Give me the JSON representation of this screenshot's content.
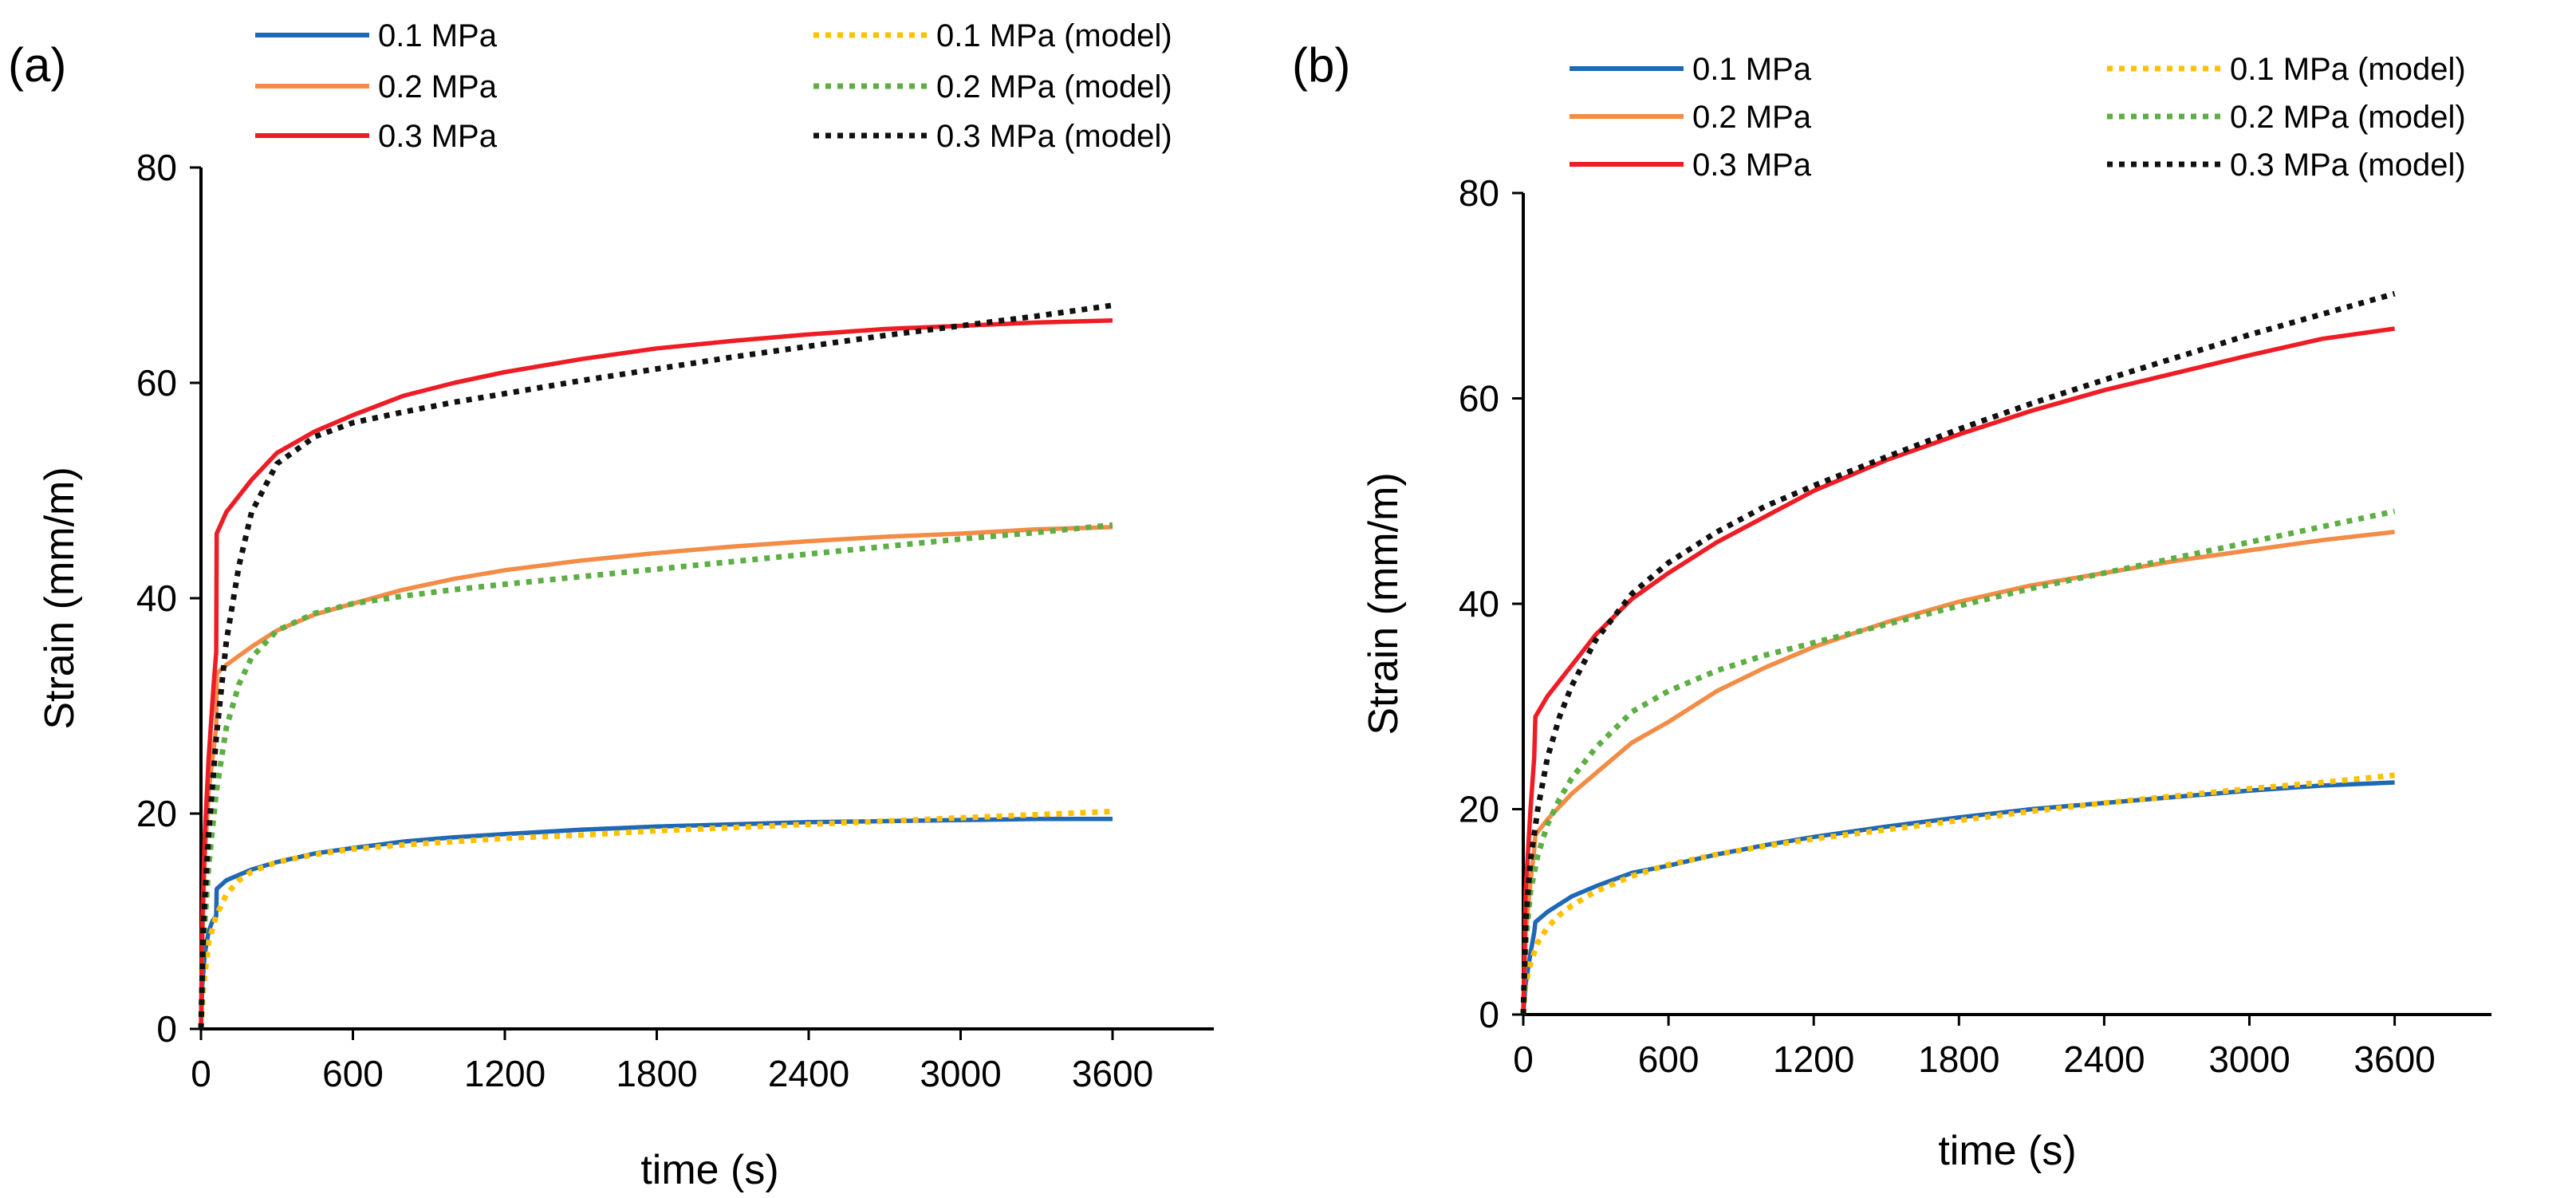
{
  "colors": {
    "exp_01": "#1F68B5",
    "exp_02": "#F28C46",
    "exp_03": "#EE1C24",
    "mod_01": "#FFC000",
    "mod_02": "#5DAE44",
    "mod_03": "#111111",
    "axis": "#000000"
  },
  "chart_data": [
    {
      "type": "line",
      "panel_label": "(a)",
      "xlabel": "time (s)",
      "ylabel": "Strain (mm/m)",
      "xlim": [
        0,
        4000
      ],
      "ylim": [
        0,
        80
      ],
      "xticks": [
        0,
        600,
        1200,
        1800,
        2400,
        3000,
        3600
      ],
      "yticks": [
        0,
        20,
        40,
        60,
        80
      ],
      "grid": false,
      "legend_position": "top",
      "series": [
        {
          "name": "0.1 MPa",
          "style": "solid",
          "color_key": "exp_01",
          "x": [
            0,
            5,
            15,
            30,
            45,
            60,
            62,
            100,
            200,
            300,
            450,
            600,
            800,
            1000,
            1200,
            1500,
            1800,
            2100,
            2400,
            2700,
            3000,
            3300,
            3600
          ],
          "y": [
            0,
            4,
            7,
            9,
            10,
            10.5,
            13,
            13.8,
            14.8,
            15.5,
            16.3,
            16.8,
            17.4,
            17.8,
            18.1,
            18.5,
            18.8,
            19.0,
            19.2,
            19.3,
            19.4,
            19.5,
            19.5
          ]
        },
        {
          "name": "0.2 MPa",
          "style": "solid",
          "color_key": "exp_02",
          "x": [
            0,
            5,
            15,
            30,
            50,
            60,
            62,
            100,
            200,
            300,
            450,
            600,
            800,
            1000,
            1200,
            1500,
            1800,
            2100,
            2400,
            2700,
            3000,
            3300,
            3600
          ],
          "y": [
            0,
            8,
            16,
            22,
            26,
            28,
            33,
            33.8,
            35.5,
            37,
            38.5,
            39.5,
            40.8,
            41.8,
            42.6,
            43.5,
            44.2,
            44.8,
            45.3,
            45.7,
            46.0,
            46.4,
            46.6
          ]
        },
        {
          "name": "0.3 MPa",
          "style": "solid",
          "color_key": "exp_03",
          "x": [
            0,
            5,
            15,
            30,
            50,
            60,
            62,
            100,
            200,
            300,
            450,
            600,
            800,
            1000,
            1200,
            1500,
            1800,
            2100,
            2400,
            2700,
            3000,
            3300,
            3600
          ],
          "y": [
            0,
            10,
            18,
            25,
            32,
            35,
            46,
            48,
            51,
            53.5,
            55.5,
            57,
            58.8,
            60,
            61,
            62.2,
            63.2,
            63.9,
            64.5,
            65,
            65.3,
            65.6,
            65.8
          ]
        },
        {
          "name": "0.1 MPa (model)",
          "style": "dotted",
          "color_key": "mod_01",
          "x": [
            0,
            10,
            30,
            60,
            100,
            150,
            200,
            300,
            450,
            600,
            800,
            1000,
            1200,
            1500,
            1800,
            2100,
            2400,
            2700,
            3000,
            3300,
            3600
          ],
          "y": [
            0,
            4,
            8,
            10.5,
            12.5,
            13.8,
            14.6,
            15.5,
            16.2,
            16.7,
            17.1,
            17.4,
            17.7,
            18.0,
            18.4,
            18.7,
            19.0,
            19.3,
            19.6,
            19.9,
            20.2
          ]
        },
        {
          "name": "0.2 MPa (model)",
          "style": "dotted",
          "color_key": "mod_02",
          "x": [
            0,
            10,
            30,
            60,
            100,
            150,
            200,
            300,
            450,
            600,
            800,
            1000,
            1200,
            1500,
            1800,
            2100,
            2400,
            2700,
            3000,
            3300,
            3600
          ],
          "y": [
            0,
            8,
            15,
            22,
            28,
            32,
            34.5,
            37,
            38.6,
            39.5,
            40.2,
            40.8,
            41.3,
            42.0,
            42.7,
            43.4,
            44.1,
            44.8,
            45.5,
            46.1,
            46.8
          ]
        },
        {
          "name": "0.3 MPa (model)",
          "style": "dotted",
          "color_key": "mod_03",
          "x": [
            0,
            10,
            30,
            60,
            100,
            150,
            200,
            300,
            450,
            600,
            800,
            1000,
            1200,
            1500,
            1800,
            2100,
            2400,
            2700,
            3000,
            3300,
            3600
          ],
          "y": [
            0,
            10,
            18,
            27,
            36,
            43,
            48,
            52.5,
            55,
            56.3,
            57.3,
            58.2,
            59,
            60.2,
            61.3,
            62.4,
            63.4,
            64.4,
            65.3,
            66.2,
            67.2
          ]
        }
      ]
    },
    {
      "type": "line",
      "panel_label": "(b)",
      "xlabel": "time (s)",
      "ylabel": "Strain (mm/m)",
      "xlim": [
        0,
        4000
      ],
      "ylim": [
        0,
        80
      ],
      "xticks": [
        0,
        600,
        1200,
        1800,
        2400,
        3000,
        3600
      ],
      "yticks": [
        0,
        20,
        40,
        60,
        80
      ],
      "grid": false,
      "legend_position": "top",
      "series": [
        {
          "name": "0.1 MPa",
          "style": "solid",
          "color_key": "exp_01",
          "x": [
            0,
            10,
            30,
            45,
            50,
            100,
            200,
            300,
            450,
            600,
            800,
            1000,
            1200,
            1500,
            1800,
            2100,
            2400,
            2700,
            3000,
            3300,
            3600
          ],
          "y": [
            0,
            3,
            6,
            8,
            9,
            10,
            11.5,
            12.5,
            13.8,
            14.5,
            15.6,
            16.5,
            17.3,
            18.3,
            19.2,
            20.0,
            20.6,
            21.2,
            21.8,
            22.3,
            22.6
          ]
        },
        {
          "name": "0.2 MPa",
          "style": "solid",
          "color_key": "exp_02",
          "x": [
            0,
            10,
            30,
            45,
            50,
            100,
            200,
            300,
            450,
            600,
            800,
            1000,
            1200,
            1500,
            1800,
            2100,
            2400,
            2700,
            3000,
            3300,
            3600
          ],
          "y": [
            0,
            8,
            13,
            16,
            17.5,
            19,
            21.5,
            23.5,
            26.5,
            28.5,
            31.5,
            33.8,
            35.8,
            38.2,
            40.2,
            41.8,
            43.0,
            44.2,
            45.2,
            46.2,
            47.0
          ]
        },
        {
          "name": "0.3 MPa",
          "style": "solid",
          "color_key": "exp_03",
          "x": [
            0,
            10,
            30,
            45,
            50,
            100,
            200,
            300,
            450,
            600,
            800,
            1000,
            1200,
            1500,
            1800,
            2100,
            2400,
            2700,
            3000,
            3300,
            3600
          ],
          "y": [
            0,
            12,
            20,
            25,
            29,
            31,
            34,
            37,
            40.5,
            43,
            46,
            48.5,
            51,
            54,
            56.5,
            58.8,
            60.8,
            62.5,
            64.2,
            65.8,
            66.8
          ]
        },
        {
          "name": "0.1 MPa (model)",
          "style": "dotted",
          "color_key": "mod_01",
          "x": [
            0,
            10,
            30,
            60,
            100,
            150,
            200,
            300,
            450,
            600,
            800,
            1000,
            1200,
            1500,
            1800,
            2100,
            2400,
            2700,
            3000,
            3300,
            3600
          ],
          "y": [
            0,
            3,
            5,
            7,
            8.5,
            9.7,
            10.6,
            12,
            13.5,
            14.6,
            15.6,
            16.4,
            17.1,
            18.0,
            18.9,
            19.8,
            20.6,
            21.3,
            22.0,
            22.6,
            23.3
          ]
        },
        {
          "name": "0.2 MPa (model)",
          "style": "dotted",
          "color_key": "mod_02",
          "x": [
            0,
            10,
            30,
            60,
            100,
            150,
            200,
            300,
            450,
            600,
            800,
            1000,
            1200,
            1500,
            1800,
            2100,
            2400,
            2700,
            3000,
            3300,
            3600
          ],
          "y": [
            0,
            7,
            12,
            15.5,
            18.5,
            21,
            23,
            26,
            29.5,
            31.5,
            33.5,
            35,
            36.2,
            38,
            39.8,
            41.5,
            43,
            44.5,
            46,
            47.5,
            49
          ]
        },
        {
          "name": "0.3 MPa (model)",
          "style": "dotted",
          "color_key": "mod_03",
          "x": [
            0,
            10,
            30,
            60,
            100,
            150,
            200,
            300,
            450,
            600,
            800,
            1000,
            1200,
            1500,
            1800,
            2100,
            2400,
            2700,
            3000,
            3300,
            3600
          ],
          "y": [
            0,
            9,
            15,
            20,
            25,
            29,
            32,
            36.5,
            41,
            44,
            47,
            49.5,
            51.5,
            54.3,
            57,
            59.5,
            61.8,
            64,
            66.2,
            68.2,
            70.2
          ]
        }
      ]
    }
  ]
}
